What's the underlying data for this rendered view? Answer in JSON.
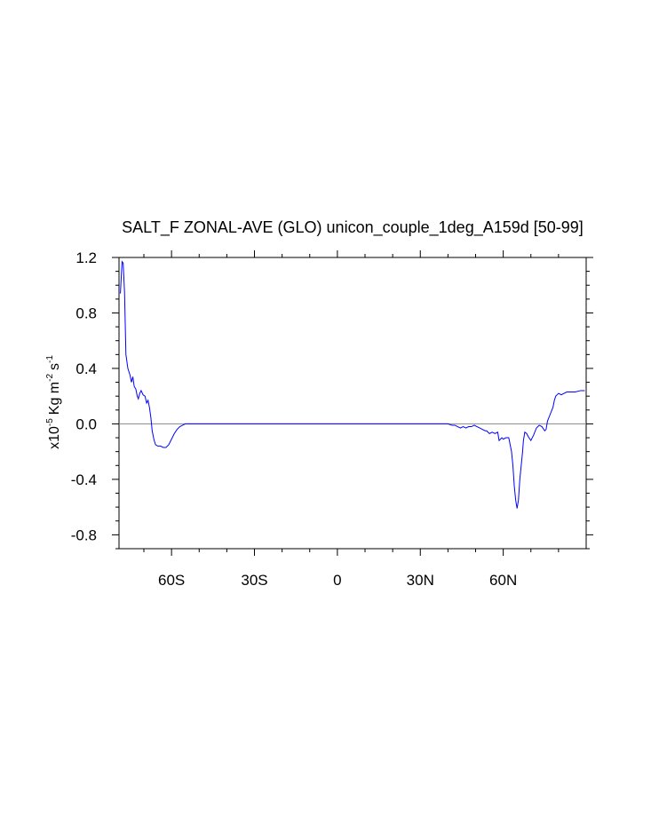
{
  "chart_data": {
    "type": "line",
    "title": "SALT_F ZONAL-AVE (GLO) unicon_couple_1deg_A159d [50-99]",
    "ylabel": {
      "prefix": "x10",
      "exp": "-5",
      "unit1": "Kg m",
      "exp2": "-2",
      "unit2": "s",
      "exp3": "-1"
    },
    "xlim": [
      -79,
      90
    ],
    "ylim": [
      -0.9,
      1.2
    ],
    "x_ticks": [
      {
        "value": -60,
        "label": "60S"
      },
      {
        "value": -30,
        "label": "30S"
      },
      {
        "value": 0,
        "label": "0"
      },
      {
        "value": 30,
        "label": "30N"
      },
      {
        "value": 60,
        "label": "60N"
      }
    ],
    "y_ticks": [
      {
        "value": 1.2,
        "label": "1.2"
      },
      {
        "value": 0.8,
        "label": "0.8"
      },
      {
        "value": 0.4,
        "label": "0.4"
      },
      {
        "value": 0.0,
        "label": "0.0"
      },
      {
        "value": -0.4,
        "label": "-0.4"
      },
      {
        "value": -0.8,
        "label": "-0.8"
      }
    ],
    "reference_line": 0,
    "series": [
      {
        "color": "#0000ff",
        "x": [
          -78.5,
          -77.9,
          -77.5,
          -77.0,
          -76.5,
          -75.8,
          -75.0,
          -74.5,
          -74.0,
          -73.5,
          -72.9,
          -72.4,
          -72.0,
          -71.5,
          -71.0,
          -70.3,
          -69.6,
          -69.0,
          -68.5,
          -68.0,
          -67.5,
          -67.0,
          -66.4,
          -65.8,
          -65.0,
          -64.0,
          -63.0,
          -62.0,
          -61.0,
          -60.0,
          -59.0,
          -58.0,
          -57.0,
          -56.0,
          -55.0,
          -54.0,
          -53.0,
          -52.0,
          -51.0,
          -50.0,
          -45.0,
          -40.0,
          -30.0,
          -20.0,
          -10.0,
          0.0,
          10.0,
          20.0,
          30.0,
          38.0,
          40.0,
          41.5,
          42.5,
          43.5,
          44.5,
          45.5,
          46.5,
          47.5,
          48.5,
          49.5,
          50.5,
          51.5,
          52.5,
          53.5,
          54.0,
          55.0,
          56.0,
          57.0,
          58.0,
          58.5,
          59.0,
          59.5,
          60.0,
          61.0,
          62.0,
          63.0,
          63.5,
          64.0,
          64.5,
          65.0,
          65.5,
          66.0,
          66.5,
          67.0,
          67.3,
          67.8,
          68.5,
          69.0,
          70.0,
          71.0,
          72.0,
          73.0,
          74.0,
          75.0,
          75.5,
          76.0,
          77.0,
          78.0,
          78.5,
          79.0,
          80.0,
          81.0,
          82.0,
          83.0,
          84.0,
          86.0,
          88.0,
          89.5
        ],
        "values": [
          0.94,
          1.17,
          1.16,
          0.95,
          0.5,
          0.4,
          0.35,
          0.3,
          0.34,
          0.27,
          0.25,
          0.2,
          0.18,
          0.22,
          0.24,
          0.21,
          0.2,
          0.15,
          0.17,
          0.12,
          0.05,
          -0.05,
          -0.11,
          -0.15,
          -0.16,
          -0.16,
          -0.17,
          -0.17,
          -0.15,
          -0.11,
          -0.07,
          -0.04,
          -0.02,
          -0.01,
          0.0,
          0.0,
          0.0,
          0.0,
          0.0,
          0.0,
          0.0,
          0.0,
          0.0,
          0.0,
          0.0,
          0.0,
          0.0,
          0.0,
          0.0,
          0.0,
          0.0,
          -0.01,
          -0.01,
          -0.02,
          -0.03,
          -0.02,
          -0.03,
          -0.02,
          -0.02,
          -0.01,
          -0.02,
          -0.03,
          -0.04,
          -0.05,
          -0.05,
          -0.07,
          -0.06,
          -0.07,
          -0.06,
          -0.12,
          -0.11,
          -0.1,
          -0.11,
          -0.1,
          -0.1,
          -0.2,
          -0.3,
          -0.45,
          -0.55,
          -0.61,
          -0.55,
          -0.4,
          -0.3,
          -0.2,
          -0.12,
          -0.06,
          -0.07,
          -0.09,
          -0.12,
          -0.08,
          -0.03,
          -0.01,
          -0.02,
          -0.05,
          -0.04,
          0.02,
          0.07,
          0.12,
          0.17,
          0.2,
          0.22,
          0.21,
          0.22,
          0.23,
          0.23,
          0.23,
          0.24,
          0.24
        ]
      }
    ]
  }
}
